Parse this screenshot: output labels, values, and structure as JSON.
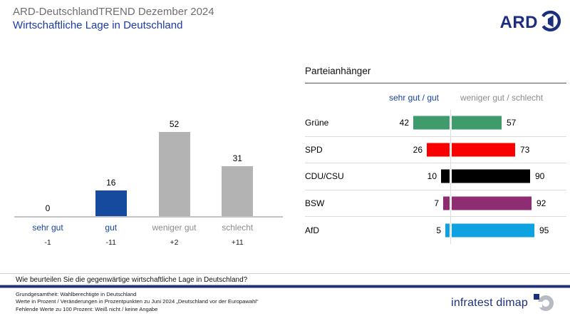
{
  "header": {
    "supertitle": "ARD-DeutschlandTREND Dezember 2024",
    "title": "Wirtschaftliche Lage in Deutschland",
    "logo_text": "ARD"
  },
  "colors": {
    "navy": "#1c2f7e",
    "title_blue": "#1b3aa6",
    "label_blue": "#1745a3",
    "label_gray": "#8c8c8c",
    "bar_blue": "#164a9e",
    "bar_gray": "#b3b3b3"
  },
  "chart_data": [
    {
      "type": "bar",
      "title": "Wirtschaftliche Lage in Deutschland",
      "categories": [
        "sehr gut",
        "gut",
        "weniger gut",
        "schlecht"
      ],
      "values": [
        0,
        16,
        52,
        31
      ],
      "changes": [
        "-1",
        "-11",
        "+2",
        "+11"
      ],
      "bar_colors": [
        "#164a9e",
        "#164a9e",
        "#b3b3b3",
        "#b3b3b3"
      ],
      "label_colors": [
        "#1745a3",
        "#1745a3",
        "#8c8c8c",
        "#8c8c8c"
      ],
      "unit": "Prozent",
      "ylim": [
        0,
        60
      ],
      "grid": false
    },
    {
      "type": "bar",
      "subtype": "diverging-horizontal",
      "title": "Parteianhänger",
      "col_headers": [
        "sehr gut / gut",
        "weniger gut / schlecht"
      ],
      "categories": [
        "Grüne",
        "SPD",
        "CDU/CSU",
        "BSW",
        "AfD"
      ],
      "series": [
        {
          "name": "sehr gut / gut",
          "values": [
            42,
            26,
            10,
            7,
            5
          ]
        },
        {
          "name": "weniger gut / schlecht",
          "values": [
            57,
            73,
            90,
            92,
            95
          ]
        }
      ],
      "bar_colors": [
        "#3f9b6c",
        "#fb0000",
        "#000000",
        "#8e2d72",
        "#0ea2e0"
      ],
      "unit": "Prozent"
    }
  ],
  "footer": {
    "question": "Wie beurteilen Sie die gegenwärtige wirtschaftliche Lage in Deutschland?",
    "notes": [
      "Grundgesamtheit: Wahlberechtigte in Deutschland",
      "Werte in Prozent / Veränderungen in Prozentpunkten zu Juni 2024 „Deutschland vor der Europawahl“",
      "Fehlende Werte zu 100 Prozent: Weiß nicht / keine Angabe"
    ],
    "brand": "infratest dimap"
  }
}
